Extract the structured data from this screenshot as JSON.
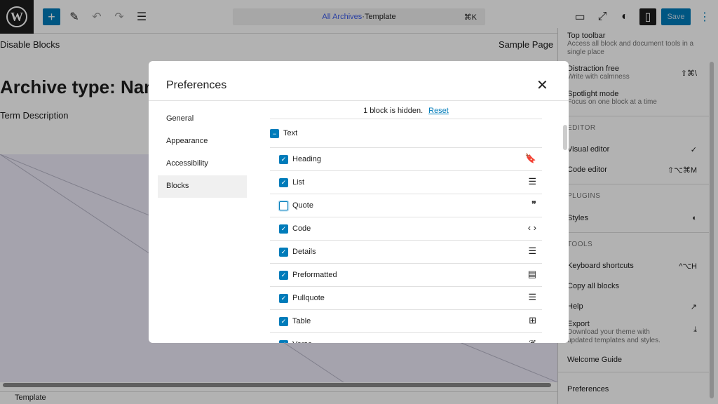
{
  "topbar": {
    "logo": "W",
    "breadcrumb_link": "All Archives",
    "breadcrumb_sep": " · ",
    "breadcrumb_type": "Template",
    "shortcut": "⌘K",
    "save": "Save"
  },
  "editor": {
    "site_title": "Disable Blocks",
    "nav_link": "Sample Page",
    "heading": "Archive type: Name",
    "description": "Term Description",
    "footer": "Template"
  },
  "menu": {
    "top_toolbar": {
      "label": "Top toolbar",
      "desc": "Access all block and document tools in a single place"
    },
    "distraction": {
      "label": "Distraction free",
      "desc": "Write with calmness",
      "shortcut": "⇧⌘\\"
    },
    "spotlight": {
      "label": "Spotlight mode",
      "desc": "Focus on one block at a time"
    },
    "editor_heading": "EDITOR",
    "visual": "Visual editor",
    "visual_check": "✓",
    "code": "Code editor",
    "code_shortcut": "⇧⌥⌘M",
    "plugins_heading": "PLUGINS",
    "styles": "Styles",
    "tools_heading": "TOOLS",
    "shortcuts": "Keyboard shortcuts",
    "shortcuts_key": "^⌥H",
    "copy": "Copy all blocks",
    "help": "Help",
    "export": {
      "label": "Export",
      "desc": "Download your theme with updated templates and styles."
    },
    "welcome": "Welcome Guide",
    "preferences": "Preferences"
  },
  "modal": {
    "title": "Preferences",
    "tabs": [
      "General",
      "Appearance",
      "Accessibility",
      "Blocks"
    ],
    "selected_tab": "Blocks",
    "hidden_text": "1 block is hidden.",
    "reset": "Reset",
    "group": "Text",
    "blocks": [
      {
        "label": "Heading",
        "checked": true,
        "icon": "bookmark-icon",
        "glyph": "🔖"
      },
      {
        "label": "List",
        "checked": true,
        "icon": "list-icon",
        "glyph": "☰"
      },
      {
        "label": "Quote",
        "checked": false,
        "icon": "quote-icon",
        "glyph": "❞"
      },
      {
        "label": "Code",
        "checked": true,
        "icon": "code-icon",
        "glyph": "‹ ›"
      },
      {
        "label": "Details",
        "checked": true,
        "icon": "details-icon",
        "glyph": "☰"
      },
      {
        "label": "Preformatted",
        "checked": true,
        "icon": "preformatted-icon",
        "glyph": "▤"
      },
      {
        "label": "Pullquote",
        "checked": true,
        "icon": "pullquote-icon",
        "glyph": "☰"
      },
      {
        "label": "Table",
        "checked": true,
        "icon": "table-icon",
        "glyph": "⊞"
      },
      {
        "label": "Verse",
        "checked": true,
        "icon": "feather-icon",
        "glyph": "❦"
      }
    ]
  }
}
